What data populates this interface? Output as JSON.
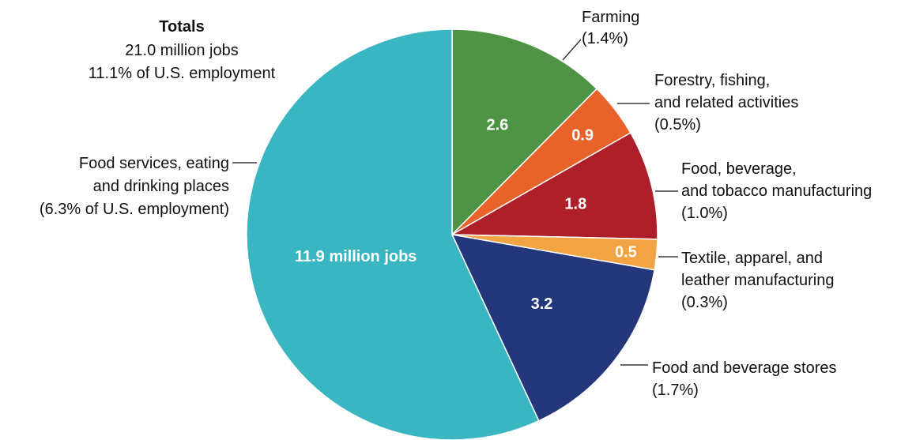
{
  "chart_data": {
    "type": "pie",
    "totals": {
      "title": "Totals",
      "lines": [
        "21.0 million jobs",
        "11.1% of U.S. employment"
      ]
    },
    "unit": "million jobs",
    "slices": [
      {
        "value": 2.6,
        "value_label": "2.6",
        "label_lines": [
          "Farming",
          "(1.4%)"
        ],
        "color": "#4e9444"
      },
      {
        "value": 0.9,
        "value_label": "0.9",
        "label_lines": [
          "Forestry, fishing,",
          "and related activities",
          "(0.5%)"
        ],
        "color": "#e8632a"
      },
      {
        "value": 1.8,
        "value_label": "1.8",
        "label_lines": [
          "Food, beverage,",
          "and tobacco manufacturing",
          "(1.0%)"
        ],
        "color": "#af1f2a"
      },
      {
        "value": 0.5,
        "value_label": "0.5",
        "label_lines": [
          "Textile, apparel, and",
          "leather manufacturing",
          "(0.3%)"
        ],
        "color": "#f2a444"
      },
      {
        "value": 3.2,
        "value_label": "3.2",
        "label_lines": [
          "Food and beverage stores",
          "(1.7%)"
        ],
        "color": "#25377b"
      },
      {
        "value": 11.9,
        "value_label": "11.9 million jobs",
        "label_lines": [
          "Food services, eating",
          "and drinking places",
          "(6.3% of U.S. employment)"
        ],
        "color": "#3ab6c3"
      }
    ]
  }
}
